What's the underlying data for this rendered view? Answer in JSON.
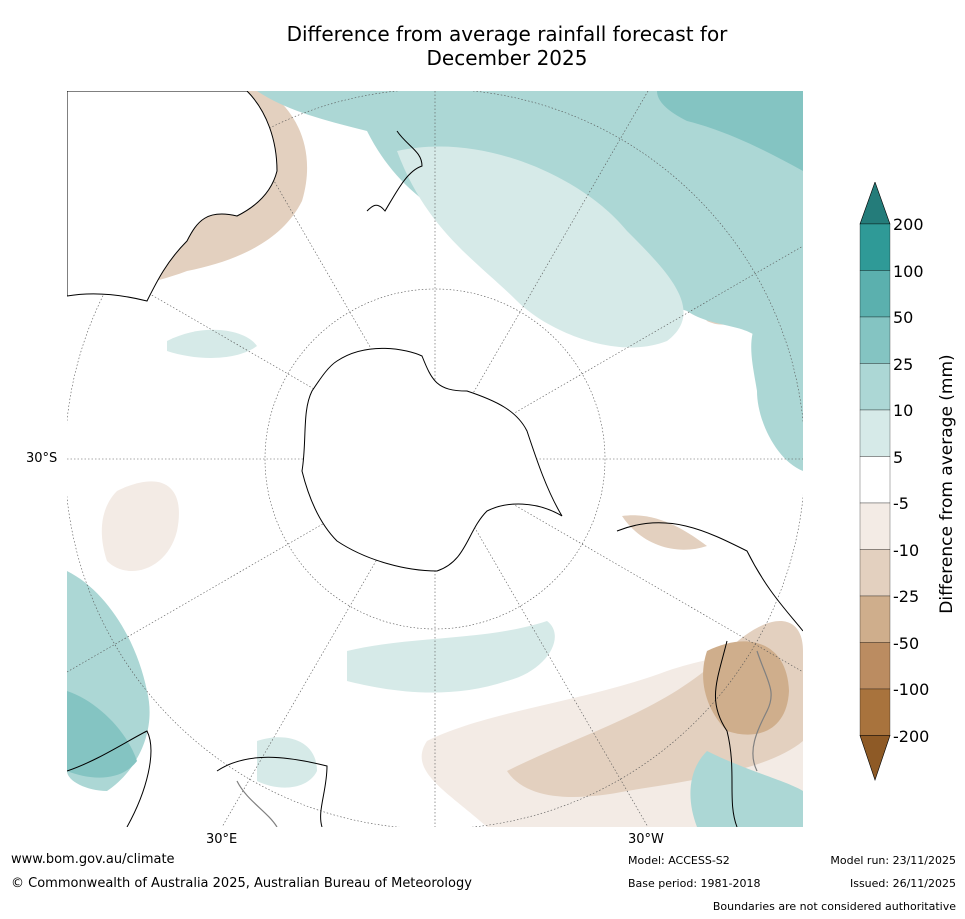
{
  "title_line1": "Difference from average rainfall forecast for",
  "title_line2": "December 2025",
  "map": {
    "lat_label": "30°S",
    "lon_label_east": "30°E",
    "lon_label_west": "30°W",
    "colors": {
      "ocean": "#ffffff",
      "coast": "#000000",
      "boundary": "#808080",
      "graticule": "#555555"
    }
  },
  "legend": {
    "title": "Difference from average (mm)",
    "ticks": [
      "200",
      "100",
      "50",
      "25",
      "10",
      "5",
      "-5",
      "-10",
      "-25",
      "-50",
      "-100",
      "-200"
    ],
    "colors": [
      "#247c7a",
      "#2f9a97",
      "#5bb0ae",
      "#84c4c2",
      "#acd7d5",
      "#d6eae8",
      "#ffffff",
      "#f3ebe5",
      "#e3d0bf",
      "#cfae8c",
      "#bb8c61",
      "#a8733d",
      "#8e5a26"
    ]
  },
  "footer": {
    "website": "www.bom.gov.au/climate",
    "copyright": "© Commonwealth of Australia 2025, Australian Bureau of Meteorology",
    "model": "Model: ACCESS-S2",
    "base_period": "Base period: 1981-2018",
    "model_run": "Model run: 23/11/2025",
    "issued": "Issued: 26/11/2025",
    "disclaimer": "Boundaries are not considered authoritative"
  }
}
